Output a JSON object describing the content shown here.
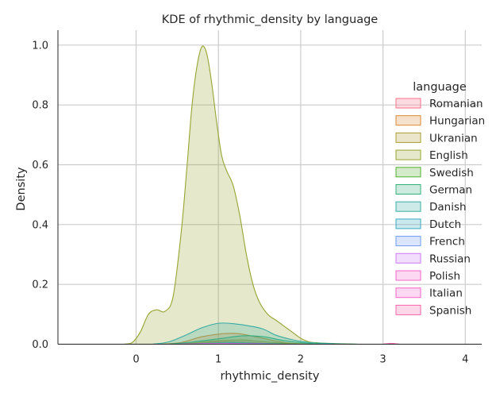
{
  "chart_data": {
    "type": "area",
    "title": "KDE of rhythmic_density by language",
    "xlabel": "rhythmic_density",
    "ylabel": "Density",
    "xlim": [
      -0.95,
      4.2
    ],
    "ylim": [
      0,
      1.05
    ],
    "x_ticks": [
      "0",
      "1",
      "2",
      "3",
      "4"
    ],
    "y_ticks": [
      "0.0",
      "0.2",
      "0.4",
      "0.6",
      "0.8",
      "1.0"
    ],
    "grid": true,
    "legend_title": "language",
    "legend_position": "right",
    "series": [
      {
        "name": "Romanian",
        "color": "#f77189",
        "points": [
          [
            0.4,
            0
          ],
          [
            0.7,
            0.003
          ],
          [
            1.0,
            0.008
          ],
          [
            1.3,
            0.007
          ],
          [
            1.7,
            0.002
          ],
          [
            2.1,
            0
          ]
        ]
      },
      {
        "name": "Hungarian",
        "color": "#dc8932",
        "points": [
          [
            0.3,
            0
          ],
          [
            0.55,
            0.006
          ],
          [
            0.8,
            0.025
          ],
          [
            1.05,
            0.035
          ],
          [
            1.25,
            0.035
          ],
          [
            1.5,
            0.022
          ],
          [
            1.8,
            0.006
          ],
          [
            2.1,
            0
          ]
        ]
      },
      {
        "name": "Ukranian",
        "color": "#ae9d31",
        "points": [
          [
            0.4,
            0
          ],
          [
            0.7,
            0.005
          ],
          [
            1.0,
            0.012
          ],
          [
            1.3,
            0.014
          ],
          [
            1.6,
            0.007
          ],
          [
            2.0,
            0
          ]
        ]
      },
      {
        "name": "English",
        "color": "#97a431",
        "points": [
          [
            -0.15,
            0
          ],
          [
            -0.05,
            0.005
          ],
          [
            0.05,
            0.04
          ],
          [
            0.15,
            0.1
          ],
          [
            0.25,
            0.115
          ],
          [
            0.35,
            0.11
          ],
          [
            0.45,
            0.16
          ],
          [
            0.55,
            0.38
          ],
          [
            0.62,
            0.6
          ],
          [
            0.68,
            0.8
          ],
          [
            0.74,
            0.93
          ],
          [
            0.8,
            0.995
          ],
          [
            0.86,
            0.97
          ],
          [
            0.92,
            0.87
          ],
          [
            0.98,
            0.74
          ],
          [
            1.04,
            0.63
          ],
          [
            1.1,
            0.58
          ],
          [
            1.18,
            0.53
          ],
          [
            1.26,
            0.43
          ],
          [
            1.34,
            0.3
          ],
          [
            1.42,
            0.2
          ],
          [
            1.5,
            0.14
          ],
          [
            1.6,
            0.1
          ],
          [
            1.7,
            0.08
          ],
          [
            1.8,
            0.06
          ],
          [
            1.9,
            0.04
          ],
          [
            2.0,
            0.02
          ],
          [
            2.1,
            0.008
          ],
          [
            2.25,
            0.004
          ],
          [
            2.45,
            0.002
          ],
          [
            2.7,
            0
          ]
        ]
      },
      {
        "name": "Swedish",
        "color": "#50b131",
        "points": [
          [
            0.5,
            0
          ],
          [
            0.8,
            0.003
          ],
          [
            1.1,
            0.006
          ],
          [
            1.4,
            0.004
          ],
          [
            1.8,
            0
          ]
        ]
      },
      {
        "name": "German",
        "color": "#33b07a",
        "points": [
          [
            0.4,
            0
          ],
          [
            0.7,
            0.008
          ],
          [
            1.0,
            0.018
          ],
          [
            1.3,
            0.028
          ],
          [
            1.55,
            0.025
          ],
          [
            1.8,
            0.012
          ],
          [
            2.1,
            0.003
          ],
          [
            2.4,
            0
          ]
        ]
      },
      {
        "name": "Danish",
        "color": "#36ada4",
        "points": [
          [
            0.2,
            0
          ],
          [
            0.4,
            0.008
          ],
          [
            0.6,
            0.03
          ],
          [
            0.8,
            0.055
          ],
          [
            1.0,
            0.07
          ],
          [
            1.2,
            0.068
          ],
          [
            1.4,
            0.06
          ],
          [
            1.55,
            0.05
          ],
          [
            1.7,
            0.03
          ],
          [
            1.9,
            0.015
          ],
          [
            2.1,
            0.006
          ],
          [
            2.4,
            0.002
          ],
          [
            2.7,
            0
          ]
        ]
      },
      {
        "name": "Dutch",
        "color": "#38a9c5",
        "points": [
          [
            0.5,
            0
          ],
          [
            0.8,
            0.002
          ],
          [
            1.1,
            0.004
          ],
          [
            1.4,
            0.003
          ],
          [
            1.8,
            0
          ]
        ]
      },
      {
        "name": "French",
        "color": "#6e9bf4",
        "points": [
          [
            0.5,
            0
          ],
          [
            0.8,
            0.002
          ],
          [
            1.1,
            0.003
          ],
          [
            1.4,
            0.002
          ],
          [
            1.8,
            0
          ]
        ]
      },
      {
        "name": "Russian",
        "color": "#cc7af4",
        "points": [
          [
            0.5,
            0
          ],
          [
            0.9,
            0.002
          ],
          [
            1.2,
            0.002
          ],
          [
            1.6,
            0
          ]
        ]
      },
      {
        "name": "Polish",
        "color": "#f565cc",
        "points": [
          [
            0.5,
            0
          ],
          [
            0.9,
            0.001
          ],
          [
            1.3,
            0.001
          ],
          [
            1.7,
            0
          ]
        ]
      },
      {
        "name": "Italian",
        "color": "#f565cc",
        "points": [
          [
            0.5,
            0
          ],
          [
            1.0,
            0.001
          ],
          [
            1.5,
            0
          ]
        ]
      },
      {
        "name": "Spanish",
        "color": "#f564a9",
        "points": [
          [
            3.0,
            0
          ],
          [
            3.1,
            0.003
          ],
          [
            3.2,
            0
          ]
        ]
      }
    ]
  }
}
